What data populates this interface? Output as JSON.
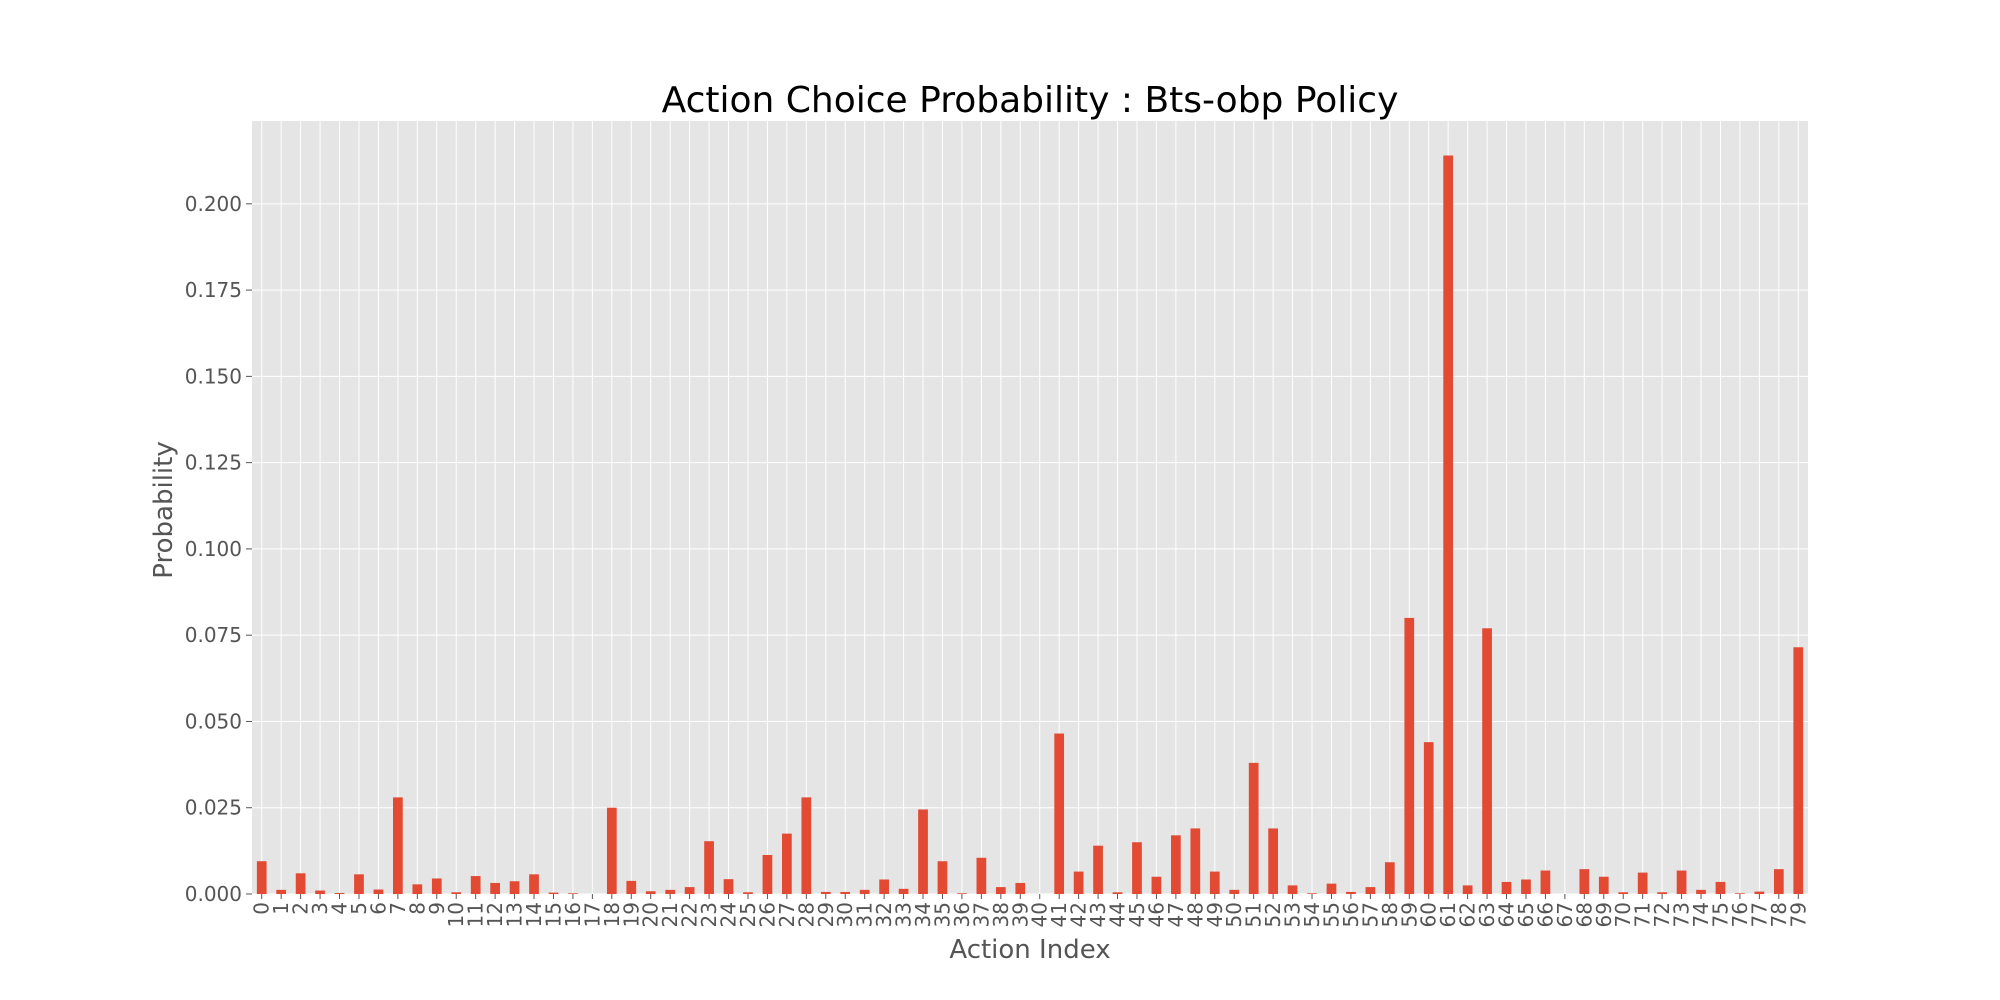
{
  "chart_data": {
    "type": "bar",
    "title": "Action Choice Probability : Bts-obp Policy",
    "xlabel": "Action Index",
    "ylabel": "Probability",
    "ylim": [
      0,
      0.224
    ],
    "yticks": [
      "0.000",
      "0.025",
      "0.050",
      "0.075",
      "0.100",
      "0.125",
      "0.150",
      "0.175",
      "0.200"
    ],
    "grid": true,
    "bar_color": "#E24A33",
    "background_color": "#E5E5E5",
    "grid_color": "#FFFFFF",
    "categories": [
      "0",
      "1",
      "2",
      "3",
      "4",
      "5",
      "6",
      "7",
      "8",
      "9",
      "10",
      "11",
      "12",
      "13",
      "14",
      "15",
      "16",
      "17",
      "18",
      "19",
      "20",
      "21",
      "22",
      "23",
      "24",
      "25",
      "26",
      "27",
      "28",
      "29",
      "30",
      "31",
      "32",
      "33",
      "34",
      "35",
      "36",
      "37",
      "38",
      "39",
      "40",
      "41",
      "42",
      "43",
      "44",
      "45",
      "46",
      "47",
      "48",
      "49",
      "50",
      "51",
      "52",
      "53",
      "54",
      "55",
      "56",
      "57",
      "58",
      "59",
      "60",
      "61",
      "62",
      "63",
      "64",
      "65",
      "66",
      "67",
      "68",
      "69",
      "70",
      "71",
      "72",
      "73",
      "74",
      "75",
      "76",
      "77",
      "78",
      "79"
    ],
    "values": [
      0.0095,
      0.0012,
      0.006,
      0.001,
      0.0003,
      0.0057,
      0.0013,
      0.028,
      0.0028,
      0.0045,
      0.0005,
      0.0052,
      0.0032,
      0.0037,
      0.0057,
      0.0004,
      0.0002,
      0.0,
      0.025,
      0.0038,
      0.0008,
      0.0012,
      0.002,
      0.0153,
      0.0043,
      0.0005,
      0.0113,
      0.0175,
      0.028,
      0.0006,
      0.0006,
      0.0012,
      0.0042,
      0.0015,
      0.0245,
      0.0095,
      0.0002,
      0.0105,
      0.002,
      0.0032,
      0.0,
      0.0465,
      0.0065,
      0.014,
      0.0005,
      0.015,
      0.005,
      0.017,
      0.019,
      0.0065,
      0.0012,
      0.038,
      0.019,
      0.0025,
      0.0002,
      0.003,
      0.0006,
      0.002,
      0.0092,
      0.08,
      0.044,
      0.214,
      0.0025,
      0.077,
      0.0035,
      0.0042,
      0.0068,
      0.0,
      0.0072,
      0.005,
      0.0005,
      0.0062,
      0.0005,
      0.0068,
      0.0012,
      0.0035,
      0.0002,
      0.0007,
      0.0072,
      0.0715
    ]
  }
}
